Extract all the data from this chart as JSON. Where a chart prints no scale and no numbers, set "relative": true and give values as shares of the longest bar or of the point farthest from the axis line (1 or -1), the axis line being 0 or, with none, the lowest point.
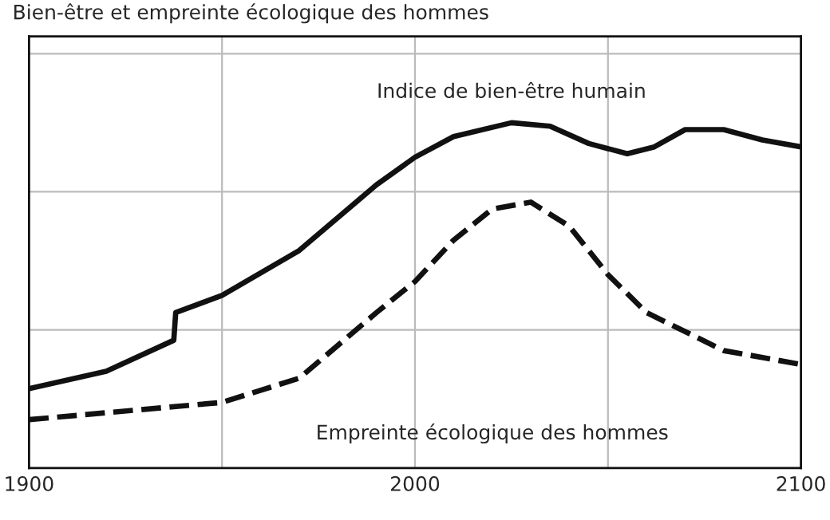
{
  "chart_data": {
    "type": "line",
    "title": "Bien-être et empreinte écologique des hommes",
    "relative": true,
    "grid": true,
    "legend": false,
    "xlim": [
      1900,
      2100
    ],
    "xticks": [
      1900,
      {
        "value": 1950,
        "label": null
      },
      2000,
      {
        "value": 2050,
        "label": null
      },
      2100
    ],
    "series": [
      {
        "name": "Indice de bien-être humain",
        "color": "#111111",
        "line_style": "solid",
        "x": [
          1900,
          1920,
          1937.5,
          1938,
          1950,
          1970,
          1990,
          2000,
          2010,
          2025,
          2035,
          2045,
          2055,
          2062,
          2070,
          2080,
          2090,
          2100
        ],
        "values": [
          0.23,
          0.28,
          0.37,
          0.45,
          0.5,
          0.63,
          0.82,
          0.9,
          0.96,
          1.0,
          0.99,
          0.94,
          0.91,
          0.93,
          0.98,
          0.98,
          0.95,
          0.93
        ]
      },
      {
        "name": "Empreinte écologique des hommes",
        "color": "#111111",
        "line_style": "dashed",
        "x": [
          1900,
          1950,
          1970,
          1990,
          2000,
          2010,
          2020,
          2030,
          2040,
          2050,
          2060,
          2080,
          2100
        ],
        "values": [
          0.14,
          0.19,
          0.26,
          0.45,
          0.54,
          0.66,
          0.75,
          0.77,
          0.7,
          0.56,
          0.45,
          0.34,
          0.3
        ]
      }
    ]
  }
}
